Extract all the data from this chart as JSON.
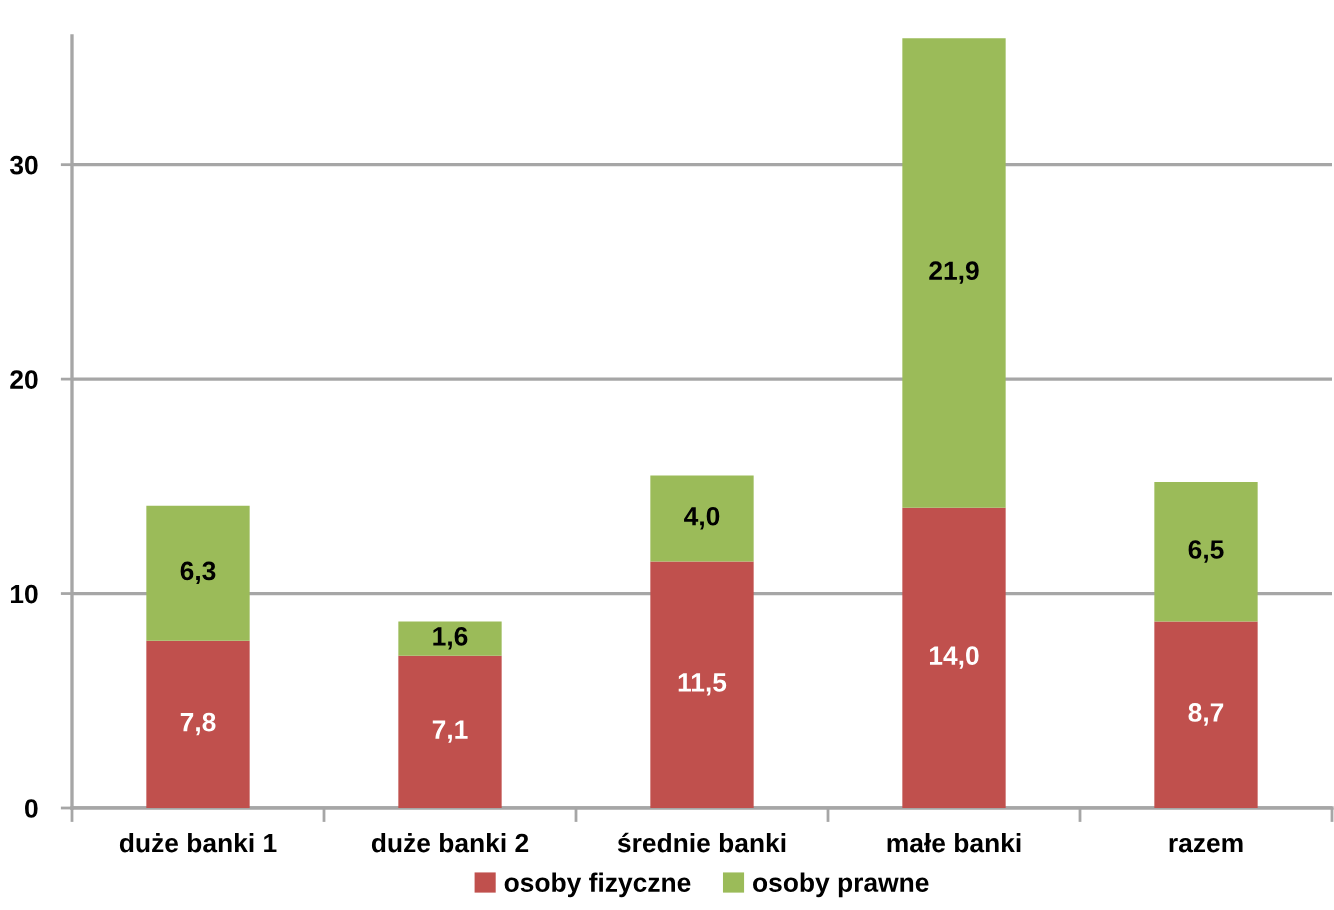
{
  "chart_data": {
    "type": "bar",
    "stacked": true,
    "categories": [
      "duże banki 1",
      "duże banki 2",
      "średnie banki",
      "małe banki",
      "razem"
    ],
    "series": [
      {
        "name": "osoby fizyczne",
        "color": "#c0504d",
        "values": [
          7.8,
          7.1,
          11.5,
          14.0,
          8.7
        ],
        "value_labels": [
          "7,8",
          "7,1",
          "11,5",
          "14,0",
          "8,7"
        ]
      },
      {
        "name": "osoby prawne",
        "color": "#9bbb59",
        "values": [
          6.3,
          1.6,
          4.0,
          21.9,
          6.5
        ],
        "value_labels": [
          "6,3",
          "1,6",
          "4,0",
          "21,9",
          "6,5"
        ]
      }
    ],
    "ylim": [
      0,
      36
    ],
    "yticks": [
      0,
      10,
      20,
      30
    ],
    "grid": "y",
    "legend": "bottom"
  }
}
